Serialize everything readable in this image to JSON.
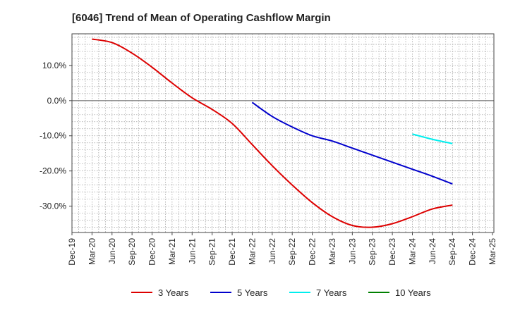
{
  "chart_data": {
    "type": "line",
    "title": "[6046]  Trend of Mean of Operating Cashflow Margin",
    "xlabel": "",
    "ylabel": "",
    "ylim": [
      -37.5,
      19
    ],
    "yticks": [
      {
        "value": 10,
        "label": "10.0%"
      },
      {
        "value": 0,
        "label": "0.0%"
      },
      {
        "value": -10,
        "label": "-10.0%"
      },
      {
        "value": -20,
        "label": "-20.0%"
      },
      {
        "value": -30,
        "label": "-30.0%"
      }
    ],
    "x_categories": [
      "Dec-19",
      "Mar-20",
      "Jun-20",
      "Sep-20",
      "Dec-20",
      "Mar-21",
      "Jun-21",
      "Sep-21",
      "Dec-21",
      "Mar-22",
      "Jun-22",
      "Sep-22",
      "Dec-22",
      "Mar-23",
      "Jun-23",
      "Sep-23",
      "Dec-23",
      "Mar-24",
      "Jun-24",
      "Sep-24",
      "Dec-24",
      "Mar-25"
    ],
    "grid": true,
    "legend_position": "bottom",
    "series": [
      {
        "name": "3 Years",
        "color": "#dd0000",
        "points": [
          {
            "x": "Mar-20",
            "y": 17.5
          },
          {
            "x": "Jun-20",
            "y": 16.5
          },
          {
            "x": "Sep-20",
            "y": 13.5
          },
          {
            "x": "Dec-20",
            "y": 9.5
          },
          {
            "x": "Mar-21",
            "y": 5.0
          },
          {
            "x": "Jun-21",
            "y": 0.8
          },
          {
            "x": "Sep-21",
            "y": -2.5
          },
          {
            "x": "Dec-21",
            "y": -6.5
          },
          {
            "x": "Mar-22",
            "y": -12.5
          },
          {
            "x": "Jun-22",
            "y": -18.5
          },
          {
            "x": "Sep-22",
            "y": -24.0
          },
          {
            "x": "Dec-22",
            "y": -29.0
          },
          {
            "x": "Mar-23",
            "y": -33.0
          },
          {
            "x": "Jun-23",
            "y": -35.5
          },
          {
            "x": "Sep-23",
            "y": -36.0
          },
          {
            "x": "Dec-23",
            "y": -35.0
          },
          {
            "x": "Mar-24",
            "y": -33.0
          },
          {
            "x": "Jun-24",
            "y": -30.8
          },
          {
            "x": "Sep-24",
            "y": -29.7
          }
        ]
      },
      {
        "name": "5 Years",
        "color": "#0000cc",
        "points": [
          {
            "x": "Mar-22",
            "y": -0.5
          },
          {
            "x": "Jun-22",
            "y": -4.5
          },
          {
            "x": "Sep-22",
            "y": -7.5
          },
          {
            "x": "Dec-22",
            "y": -10.0
          },
          {
            "x": "Mar-23",
            "y": -11.5
          },
          {
            "x": "Jun-23",
            "y": -13.5
          },
          {
            "x": "Sep-23",
            "y": -15.5
          },
          {
            "x": "Dec-23",
            "y": -17.5
          },
          {
            "x": "Mar-24",
            "y": -19.5
          },
          {
            "x": "Jun-24",
            "y": -21.5
          },
          {
            "x": "Sep-24",
            "y": -23.7
          }
        ]
      },
      {
        "name": "7 Years",
        "color": "#00eeee",
        "points": [
          {
            "x": "Mar-24",
            "y": -9.5
          },
          {
            "x": "Jun-24",
            "y": -11.0
          },
          {
            "x": "Sep-24",
            "y": -12.2
          }
        ]
      },
      {
        "name": "10 Years",
        "color": "#008000",
        "points": []
      }
    ]
  }
}
